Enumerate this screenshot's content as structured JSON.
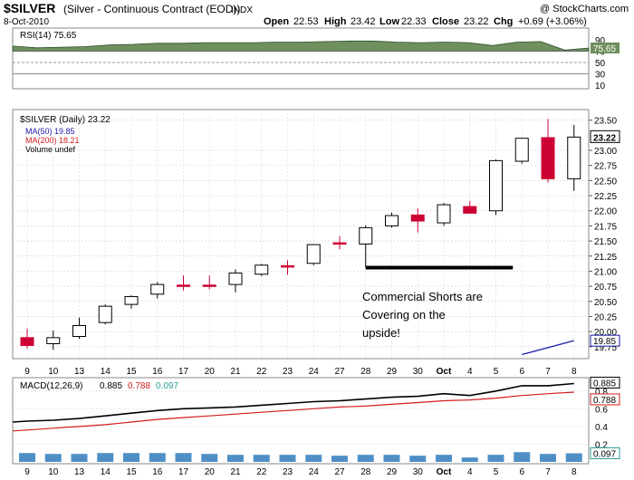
{
  "header": {
    "symbol": "$SILVER",
    "name": "(Silver - Continuous Contract (EOD))",
    "exchange": "INDX",
    "date": "8-Oct-2010",
    "watermark": "@ StockCharts.com",
    "open_label": "Open",
    "open": "22.53",
    "high_label": "High",
    "high": "23.42",
    "low_label": "Low",
    "low": "22.33",
    "close_label": "Close",
    "close": "23.22",
    "chg_label": "Chg",
    "chg": "+0.69 (+3.06%)"
  },
  "colors": {
    "up_fill": "#ffffff",
    "down_fill": "#cc0033",
    "candle_stroke": "#000000",
    "ma50": "#1a1aa8",
    "ma200": "#d41c1c",
    "rsi_fill": "#6f8f5c",
    "macd": "#000000",
    "signal": "#d41c1c",
    "hist": "#4f8fc6",
    "hist_label": "#2aa198"
  },
  "chart_data": [
    {
      "type": "area",
      "title": "RSI(14) 75.65",
      "legend": "RSI(14)",
      "last": "75.65",
      "ylim": [
        0,
        100
      ],
      "y_ticks": [
        "90",
        "70",
        "50",
        "30",
        "10"
      ],
      "values": [
        79,
        76,
        77,
        78,
        81,
        82,
        84,
        84,
        85,
        85,
        85,
        86,
        86,
        87,
        88,
        88,
        86,
        85,
        86,
        85,
        80,
        86,
        87,
        72,
        75.65
      ]
    },
    {
      "type": "candlestick",
      "legend": "$SILVER (Daily) 23.22",
      "ma50_label": "MA(50) 19.85",
      "ma200_label": "MA(200) 18.21",
      "volume_label": "Volume undef",
      "last_label": "23.22",
      "ma50_last_label": "19.85",
      "ylim": [
        19.55,
        23.65
      ],
      "y_ticks": [
        "23.50",
        "23.00",
        "22.75",
        "22.50",
        "22.25",
        "22.00",
        "21.75",
        "21.50",
        "21.25",
        "21.00",
        "20.75",
        "20.50",
        "20.25",
        "20.00",
        "19.75"
      ],
      "x_labels": [
        "9",
        "10",
        "13",
        "14",
        "15",
        "16",
        "17",
        "20",
        "21",
        "22",
        "23",
        "24",
        "27",
        "28",
        "29",
        "30",
        "Oct",
        "4",
        "5",
        "6",
        "7",
        "8"
      ],
      "candles": [
        {
          "o": 19.9,
          "h": 20.05,
          "l": 19.72,
          "c": 19.77
        },
        {
          "o": 19.8,
          "h": 20.02,
          "l": 19.7,
          "c": 19.9
        },
        {
          "o": 19.92,
          "h": 20.23,
          "l": 19.88,
          "c": 20.1
        },
        {
          "o": 20.15,
          "h": 20.45,
          "l": 20.12,
          "c": 20.42
        },
        {
          "o": 20.45,
          "h": 20.6,
          "l": 20.38,
          "c": 20.58
        },
        {
          "o": 20.62,
          "h": 20.82,
          "l": 20.55,
          "c": 20.78
        },
        {
          "o": 20.77,
          "h": 20.93,
          "l": 20.68,
          "c": 20.76
        },
        {
          "o": 20.77,
          "h": 20.93,
          "l": 20.7,
          "c": 20.75
        },
        {
          "o": 20.78,
          "h": 21.03,
          "l": 20.65,
          "c": 20.97
        },
        {
          "o": 20.95,
          "h": 21.12,
          "l": 20.92,
          "c": 21.1
        },
        {
          "o": 21.09,
          "h": 21.18,
          "l": 20.94,
          "c": 21.08
        },
        {
          "o": 21.13,
          "h": 21.45,
          "l": 21.1,
          "c": 21.44
        },
        {
          "o": 21.47,
          "h": 21.58,
          "l": 21.36,
          "c": 21.45
        },
        {
          "o": 21.45,
          "h": 21.76,
          "l": 21.06,
          "c": 21.72
        },
        {
          "o": 21.75,
          "h": 21.97,
          "l": 21.72,
          "c": 21.92
        },
        {
          "o": 21.93,
          "h": 22.04,
          "l": 21.64,
          "c": 21.83
        },
        {
          "o": 21.8,
          "h": 22.13,
          "l": 21.75,
          "c": 22.1
        },
        {
          "o": 22.07,
          "h": 22.16,
          "l": 21.96,
          "c": 21.96
        },
        {
          "o": 22.0,
          "h": 22.85,
          "l": 21.93,
          "c": 22.83
        },
        {
          "o": 22.82,
          "h": 23.21,
          "l": 22.78,
          "c": 23.2
        },
        {
          "o": 23.21,
          "h": 23.52,
          "l": 22.47,
          "c": 22.53
        },
        {
          "o": 22.53,
          "h": 23.42,
          "l": 22.33,
          "c": 23.22
        }
      ],
      "ma50": [
        {
          "i": 19,
          "v": 19.62
        },
        {
          "i": 21,
          "v": 19.85
        }
      ],
      "annotation": {
        "text_lines": [
          "Commercial Shorts are",
          "Covering on the",
          "upside!"
        ],
        "line_start_index": 13,
        "line_end_index": 19,
        "line_level": 21.06
      }
    },
    {
      "type": "line",
      "title": "MACD(12,26,9) 0.885, 0.788, 0.097",
      "legend_name": "MACD(12,26,9)",
      "legend_values": [
        "0.885",
        "0.788",
        "0.097"
      ],
      "ylim": [
        0,
        0.9
      ],
      "y_ticks": [
        "0.8",
        "0.6",
        "0.4",
        "0.2"
      ],
      "last_labels": [
        "0.885",
        "0.788",
        "0.097"
      ],
      "x_labels": [
        "9",
        "10",
        "13",
        "14",
        "15",
        "16",
        "17",
        "20",
        "21",
        "22",
        "23",
        "24",
        "27",
        "28",
        "29",
        "30",
        "Oct",
        "4",
        "5",
        "6",
        "7",
        "8"
      ],
      "series": [
        {
          "name": "MACD",
          "values": [
            0.46,
            0.47,
            0.49,
            0.52,
            0.55,
            0.58,
            0.6,
            0.61,
            0.62,
            0.64,
            0.66,
            0.68,
            0.69,
            0.71,
            0.73,
            0.74,
            0.77,
            0.75,
            0.8,
            0.86,
            0.86,
            0.885
          ]
        },
        {
          "name": "Signal",
          "values": [
            0.36,
            0.38,
            0.4,
            0.42,
            0.45,
            0.48,
            0.5,
            0.52,
            0.54,
            0.56,
            0.58,
            0.6,
            0.62,
            0.63,
            0.65,
            0.67,
            0.69,
            0.7,
            0.72,
            0.75,
            0.77,
            0.788
          ]
        },
        {
          "name": "Histogram",
          "values": [
            0.1,
            0.09,
            0.09,
            0.1,
            0.1,
            0.1,
            0.1,
            0.09,
            0.08,
            0.08,
            0.08,
            0.08,
            0.07,
            0.08,
            0.08,
            0.07,
            0.08,
            0.05,
            0.08,
            0.11,
            0.09,
            0.097
          ]
        }
      ]
    }
  ]
}
